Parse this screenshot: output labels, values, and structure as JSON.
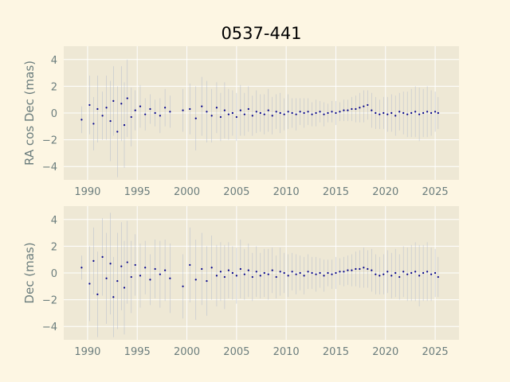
{
  "chart_data": [
    {
      "type": "scatter",
      "title": "0537-441",
      "xlabel": "",
      "ylabel": "RA cos Dec (mas)",
      "xlim": [
        1987.6,
        2027.4
      ],
      "ylim": [
        -5,
        5
      ],
      "xticks": [
        1990,
        1995,
        2000,
        2005,
        2010,
        2015,
        2020,
        2025
      ],
      "yticks": [
        -4,
        -2,
        0,
        2,
        4
      ],
      "xtick_labels": [
        "1990",
        "1995",
        "2000",
        "2005",
        "2010",
        "2015",
        "2020",
        "2025"
      ],
      "ytick_labels": [
        "−4",
        "−2",
        "0",
        "2",
        "4"
      ],
      "grid": true,
      "error_bars": true,
      "series": [
        {
          "x": [
            1989.4,
            1990.2,
            1990.6,
            1991.0,
            1991.5,
            1991.9,
            1992.3,
            1992.6,
            1993.0,
            1993.4,
            1993.7,
            1994.0,
            1994.4,
            1994.8,
            1995.3,
            1995.8,
            1996.3,
            1996.8,
            1997.3,
            1997.8,
            1998.3,
            1999.6,
            2000.3,
            2000.9,
            2001.5,
            2002.0,
            2002.5,
            2003.0,
            2003.4,
            2003.8,
            2004.2,
            2004.6,
            2005.0,
            2005.4,
            2005.8,
            2006.2,
            2006.6,
            2007.0,
            2007.4,
            2007.8,
            2008.2,
            2008.6,
            2009.0,
            2009.4,
            2009.8,
            2010.2,
            2010.6,
            2011.0,
            2011.4,
            2011.8,
            2012.2,
            2012.6,
            2013.0,
            2013.4,
            2013.8,
            2014.2,
            2014.6,
            2015.0,
            2015.4,
            2015.8,
            2016.2,
            2016.6,
            2017.0,
            2017.4,
            2017.8,
            2018.2,
            2018.6,
            2019.0,
            2019.4,
            2019.8,
            2020.2,
            2020.6,
            2021.0,
            2021.4,
            2021.8,
            2022.2,
            2022.6,
            2023.0,
            2023.4,
            2023.8,
            2024.2,
            2024.6,
            2025.0,
            2025.3
          ],
          "y": [
            -0.5,
            0.6,
            -0.8,
            0.3,
            -0.2,
            0.4,
            -0.6,
            0.9,
            -1.4,
            0.7,
            -0.9,
            1.1,
            -0.3,
            0.2,
            0.5,
            -0.1,
            0.3,
            0.0,
            -0.2,
            0.4,
            0.1,
            0.2,
            0.3,
            -0.4,
            0.5,
            0.1,
            -0.2,
            0.4,
            -0.3,
            0.2,
            -0.1,
            0.0,
            -0.3,
            0.2,
            -0.1,
            0.3,
            -0.2,
            0.1,
            0.0,
            -0.1,
            0.2,
            -0.2,
            0.1,
            0.0,
            -0.1,
            0.1,
            0.0,
            -0.1,
            0.1,
            0.0,
            0.1,
            -0.1,
            0.0,
            0.1,
            -0.1,
            0.0,
            0.1,
            0.0,
            0.1,
            0.2,
            0.2,
            0.3,
            0.3,
            0.4,
            0.5,
            0.6,
            0.2,
            0.0,
            -0.1,
            0.0,
            -0.1,
            0.0,
            -0.2,
            0.1,
            0.0,
            -0.1,
            0.0,
            0.1,
            -0.1,
            0.0,
            0.1,
            0.0,
            0.1,
            0.0
          ],
          "err": [
            1.0,
            2.2,
            2.0,
            2.5,
            1.8,
            2.4,
            3.0,
            2.6,
            3.4,
            2.8,
            3.2,
            2.9,
            2.2,
            1.5,
            1.6,
            1.2,
            1.1,
            1.0,
            1.3,
            1.4,
            1.2,
            1.6,
            1.9,
            2.4,
            2.2,
            2.3,
            2.0,
            1.9,
            1.8,
            2.1,
            1.9,
            1.7,
            1.8,
            1.9,
            1.6,
            1.7,
            1.5,
            1.6,
            1.4,
            1.5,
            1.6,
            1.4,
            1.3,
            1.5,
            1.2,
            1.3,
            1.1,
            1.2,
            1.0,
            1.1,
            1.0,
            0.9,
            1.0,
            0.8,
            0.9,
            0.7,
            0.8,
            0.9,
            0.7,
            0.8,
            0.8,
            0.9,
            1.0,
            1.1,
            1.2,
            1.1,
            1.3,
            1.2,
            1.1,
            1.2,
            1.3,
            1.4,
            1.5,
            1.4,
            1.6,
            1.7,
            1.8,
            1.9,
            2.0,
            1.8,
            1.9,
            1.7,
            1.5,
            1.2
          ]
        }
      ]
    },
    {
      "type": "scatter",
      "xlabel": "",
      "ylabel": "Dec (mas)",
      "xlim": [
        1987.6,
        2027.4
      ],
      "ylim": [
        -5,
        5
      ],
      "xticks": [
        1990,
        1995,
        2000,
        2005,
        2010,
        2015,
        2020,
        2025
      ],
      "yticks": [
        -4,
        -2,
        0,
        2,
        4
      ],
      "xtick_labels": [
        "1990",
        "1995",
        "2000",
        "2005",
        "2010",
        "2015",
        "2020",
        "2025"
      ],
      "ytick_labels": [
        "−4",
        "−2",
        "0",
        "2",
        "4"
      ],
      "grid": true,
      "error_bars": true,
      "series": [
        {
          "x": [
            1989.4,
            1990.2,
            1990.6,
            1991.0,
            1991.5,
            1991.9,
            1992.3,
            1992.6,
            1993.0,
            1993.4,
            1993.7,
            1994.0,
            1994.4,
            1994.8,
            1995.3,
            1995.8,
            1996.3,
            1996.8,
            1997.3,
            1997.8,
            1998.3,
            1999.6,
            2000.3,
            2000.9,
            2001.5,
            2002.0,
            2002.5,
            2003.0,
            2003.4,
            2003.8,
            2004.2,
            2004.6,
            2005.0,
            2005.4,
            2005.8,
            2006.2,
            2006.6,
            2007.0,
            2007.4,
            2007.8,
            2008.2,
            2008.6,
            2009.0,
            2009.4,
            2009.8,
            2010.2,
            2010.6,
            2011.0,
            2011.4,
            2011.8,
            2012.2,
            2012.6,
            2013.0,
            2013.4,
            2013.8,
            2014.2,
            2014.6,
            2015.0,
            2015.4,
            2015.8,
            2016.2,
            2016.6,
            2017.0,
            2017.4,
            2017.8,
            2018.2,
            2018.6,
            2019.0,
            2019.4,
            2019.8,
            2020.2,
            2020.6,
            2021.0,
            2021.4,
            2021.8,
            2022.2,
            2022.6,
            2023.0,
            2023.4,
            2023.8,
            2024.2,
            2024.6,
            2025.0,
            2025.3
          ],
          "y": [
            0.4,
            -0.8,
            0.9,
            -1.6,
            1.2,
            -0.4,
            0.7,
            -1.8,
            -0.6,
            0.5,
            -1.1,
            0.8,
            -0.3,
            0.6,
            -0.2,
            0.4,
            -0.5,
            0.3,
            -0.1,
            0.2,
            -0.4,
            -1.0,
            0.6,
            -0.5,
            0.3,
            -0.6,
            0.4,
            -0.2,
            0.1,
            -0.3,
            0.2,
            0.0,
            -0.2,
            0.3,
            -0.1,
            0.2,
            -0.3,
            0.1,
            -0.2,
            0.0,
            -0.1,
            0.2,
            -0.3,
            0.1,
            0.0,
            -0.2,
            0.1,
            -0.1,
            0.0,
            -0.2,
            0.1,
            0.0,
            -0.1,
            0.0,
            -0.2,
            0.0,
            -0.1,
            0.0,
            0.1,
            0.1,
            0.2,
            0.2,
            0.3,
            0.3,
            0.4,
            0.3,
            0.2,
            -0.1,
            -0.2,
            -0.1,
            0.1,
            -0.2,
            0.0,
            -0.3,
            0.1,
            -0.1,
            0.0,
            0.1,
            -0.2,
            0.0,
            0.1,
            -0.1,
            0.0,
            -0.3
          ],
          "err": [
            0.9,
            2.8,
            2.5,
            3.2,
            2.9,
            3.4,
            3.8,
            3.0,
            3.6,
            3.3,
            3.5,
            3.1,
            2.7,
            2.3,
            2.4,
            2.0,
            1.9,
            2.2,
            2.5,
            2.3,
            2.6,
            2.4,
            2.8,
            3.0,
            2.7,
            2.6,
            2.4,
            2.3,
            2.2,
            2.4,
            2.1,
            2.0,
            2.1,
            2.2,
            1.9,
            2.0,
            1.8,
            1.9,
            1.7,
            1.8,
            1.9,
            1.7,
            1.6,
            1.8,
            1.5,
            1.6,
            1.4,
            1.5,
            1.3,
            1.4,
            1.3,
            1.2,
            1.3,
            1.1,
            1.2,
            1.0,
            1.1,
            1.2,
            1.0,
            1.1,
            1.1,
            1.2,
            1.3,
            1.4,
            1.5,
            1.4,
            1.6,
            1.5,
            1.4,
            1.5,
            1.6,
            1.7,
            1.8,
            1.7,
            1.9,
            2.0,
            2.1,
            2.2,
            2.3,
            2.1,
            2.2,
            2.0,
            1.8,
            1.5
          ]
        }
      ]
    }
  ],
  "colors": {
    "figure_bg": "#fdf6e3",
    "axes_bg": "#eee8d5",
    "grid": "#ffffff",
    "marker": "#00008b",
    "errorbar": "#aab3cc",
    "tick_text": "#6b7d7d"
  }
}
